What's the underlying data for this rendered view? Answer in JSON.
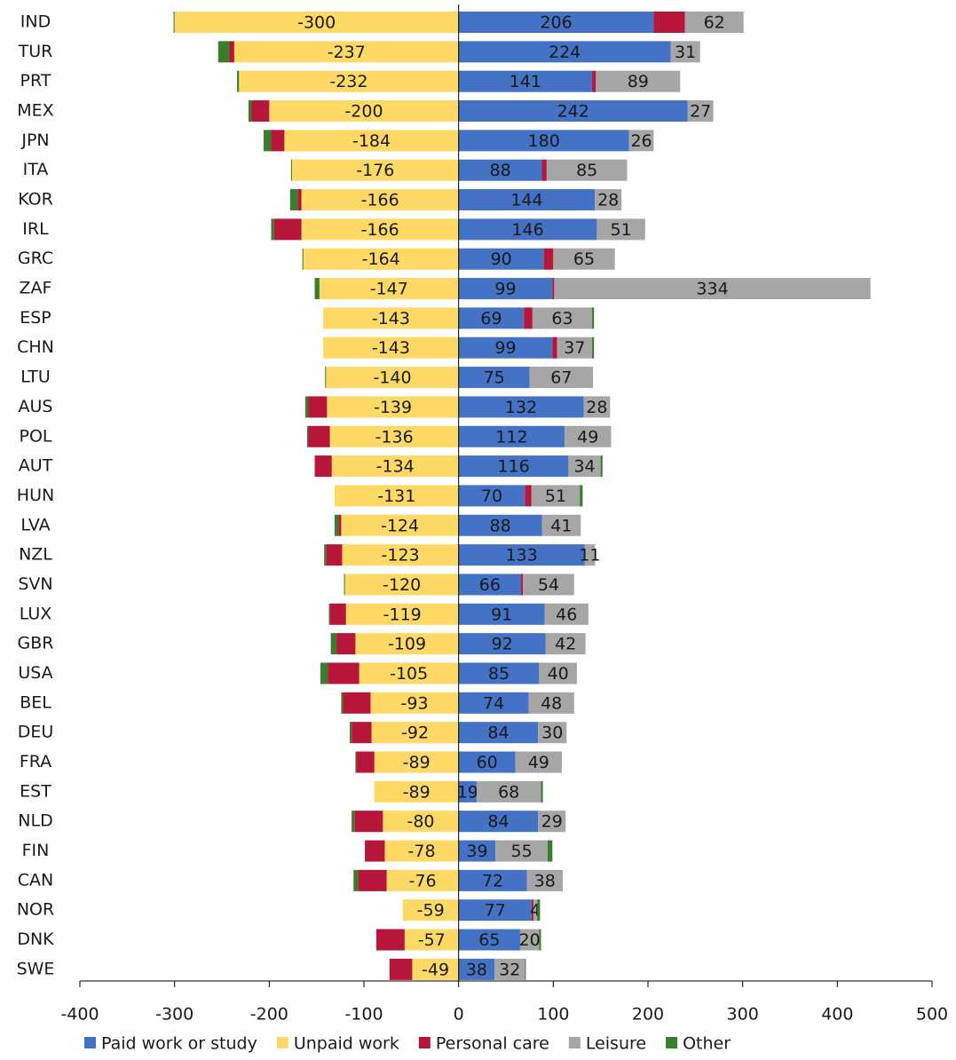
{
  "chart_data": {
    "type": "diverging-stacked-bar",
    "categories": [
      "IND",
      "TUR",
      "PRT",
      "MEX",
      "JPN",
      "ITA",
      "KOR",
      "IRL",
      "GRC",
      "ZAF",
      "ESP",
      "CHN",
      "LTU",
      "AUS",
      "POL",
      "AUT",
      "HUN",
      "LVA",
      "NZL",
      "SVN",
      "LUX",
      "GBR",
      "USA",
      "BEL",
      "DEU",
      "FRA",
      "EST",
      "NLD",
      "FIN",
      "CAN",
      "NOR",
      "DNK",
      "SWE"
    ],
    "series": [
      {
        "name": "Paid work or study",
        "color": "#4472c4",
        "labels": true,
        "values": [
          206,
          224,
          141,
          242,
          180,
          88,
          144,
          146,
          90,
          99,
          69,
          99,
          75,
          132,
          112,
          116,
          70,
          88,
          133,
          66,
          91,
          92,
          85,
          74,
          84,
          60,
          19,
          84,
          39,
          72,
          77,
          65,
          38
        ]
      },
      {
        "name": "Unpaid work",
        "color": "#ffd966",
        "labels": true,
        "values": [
          -300,
          -237,
          -232,
          -200,
          -184,
          -176,
          -166,
          -166,
          -164,
          -147,
          -143,
          -143,
          -140,
          -139,
          -136,
          -134,
          -131,
          -124,
          -123,
          -120,
          -119,
          -109,
          -105,
          -93,
          -92,
          -89,
          -89,
          -80,
          -78,
          -76,
          -59,
          -57,
          -49
        ]
      },
      {
        "name": "Personal care",
        "color": "#b5163a",
        "labels": false,
        "values": [
          33,
          -5,
          4,
          -19,
          -14,
          5,
          -4,
          -29,
          10,
          2,
          9,
          5,
          0,
          -20,
          -23,
          -18,
          7,
          -3,
          -17,
          2,
          -17,
          -20,
          -33,
          -29,
          -21,
          -19,
          0,
          -30,
          -21,
          -30,
          2,
          -30,
          -24
        ]
      },
      {
        "name": "Leisure",
        "color": "#a6a6a6",
        "labels": true,
        "values": [
          62,
          31,
          89,
          27,
          26,
          85,
          28,
          51,
          65,
          334,
          63,
          37,
          67,
          28,
          49,
          34,
          51,
          41,
          11,
          54,
          46,
          42,
          40,
          48,
          30,
          49,
          68,
          29,
          55,
          38,
          4,
          20,
          32
        ]
      },
      {
        "name": "Other",
        "color": "#3a7d2c",
        "labels": false,
        "values": [
          -1,
          -12,
          -2,
          -3,
          -8,
          -1,
          -8,
          -3,
          -1,
          -5,
          2,
          2,
          -1,
          -3,
          -1,
          2,
          3,
          -4,
          -2,
          -1,
          -1,
          -6,
          -8,
          -2,
          -2,
          -1,
          2,
          -3,
          5,
          -5,
          3,
          2,
          1
        ]
      }
    ],
    "xlim": [
      -400,
      500
    ],
    "xticks": [
      -400,
      -300,
      -200,
      -100,
      0,
      100,
      200,
      300,
      400,
      500
    ]
  }
}
